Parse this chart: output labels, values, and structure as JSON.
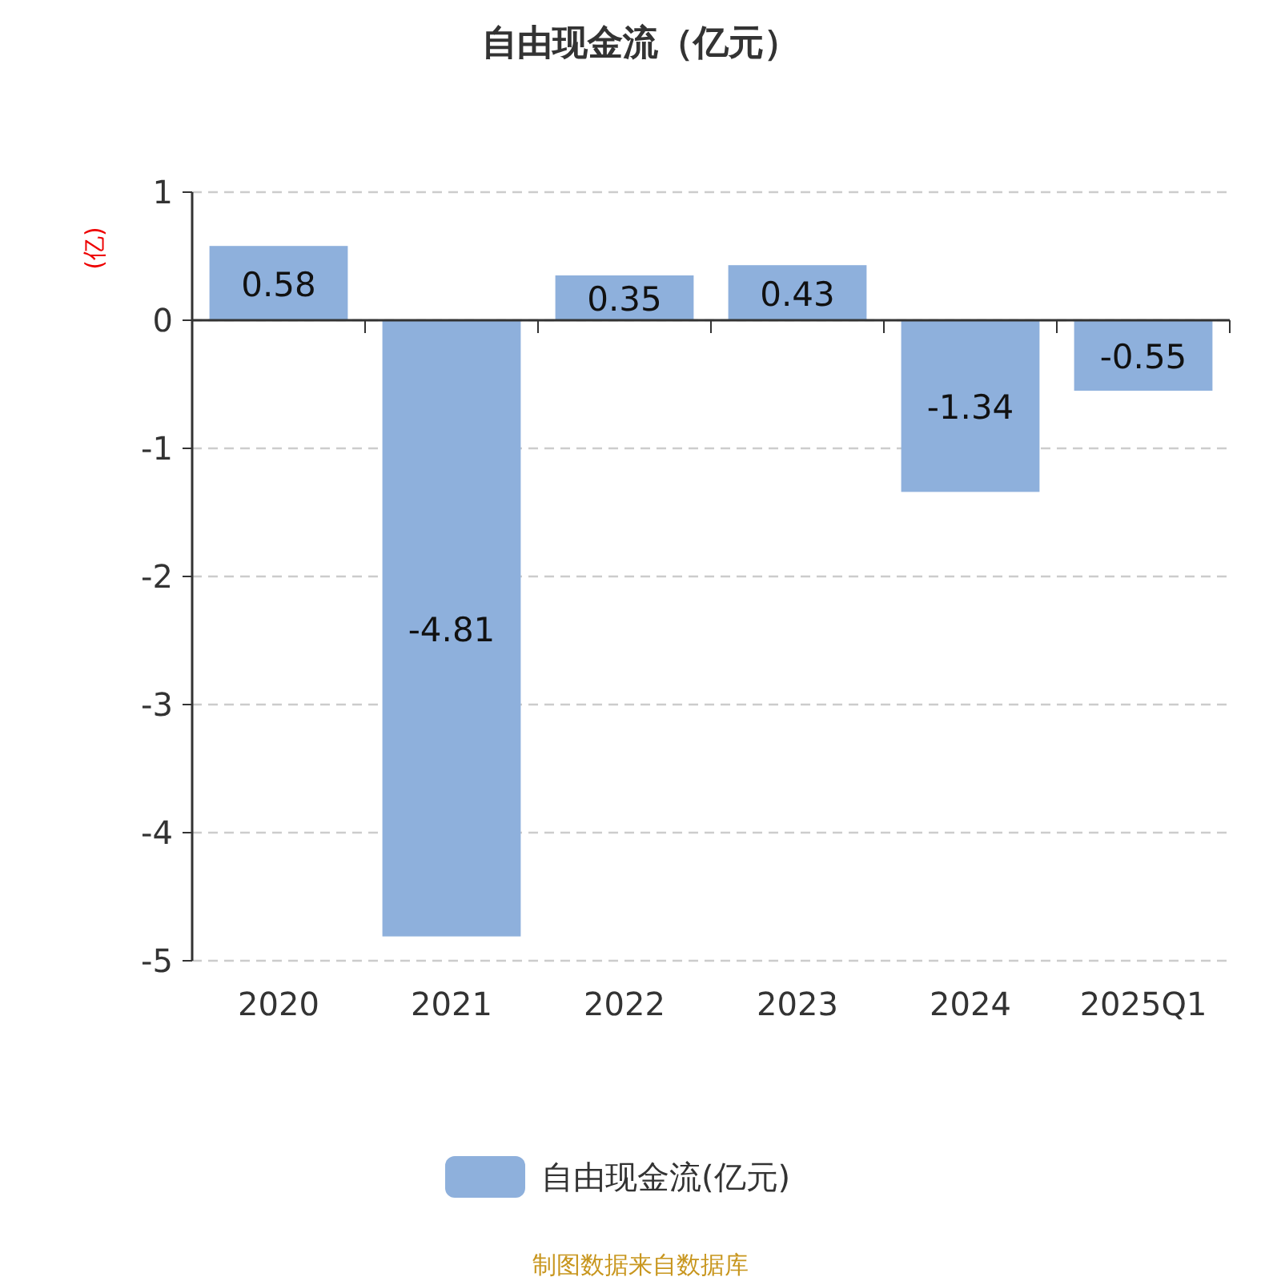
{
  "chart_data": {
    "type": "bar",
    "title": "自由现金流（亿元）",
    "ylabel": "(亿)",
    "categories": [
      "2020",
      "2021",
      "2022",
      "2023",
      "2024",
      "2025Q1"
    ],
    "series": [
      {
        "name": "自由现金流(亿元)",
        "color": "#8eb0dc",
        "values": [
          0.58,
          -4.81,
          0.35,
          0.43,
          -1.34,
          -0.55
        ]
      }
    ],
    "ylim": [
      -5,
      1
    ],
    "yticks": [
      -5,
      -4,
      -3,
      -2,
      -1,
      0,
      1
    ],
    "grid": "y",
    "legend": "bottom",
    "data_labels": true,
    "annotations": [
      "制图数据来自数据库"
    ]
  }
}
